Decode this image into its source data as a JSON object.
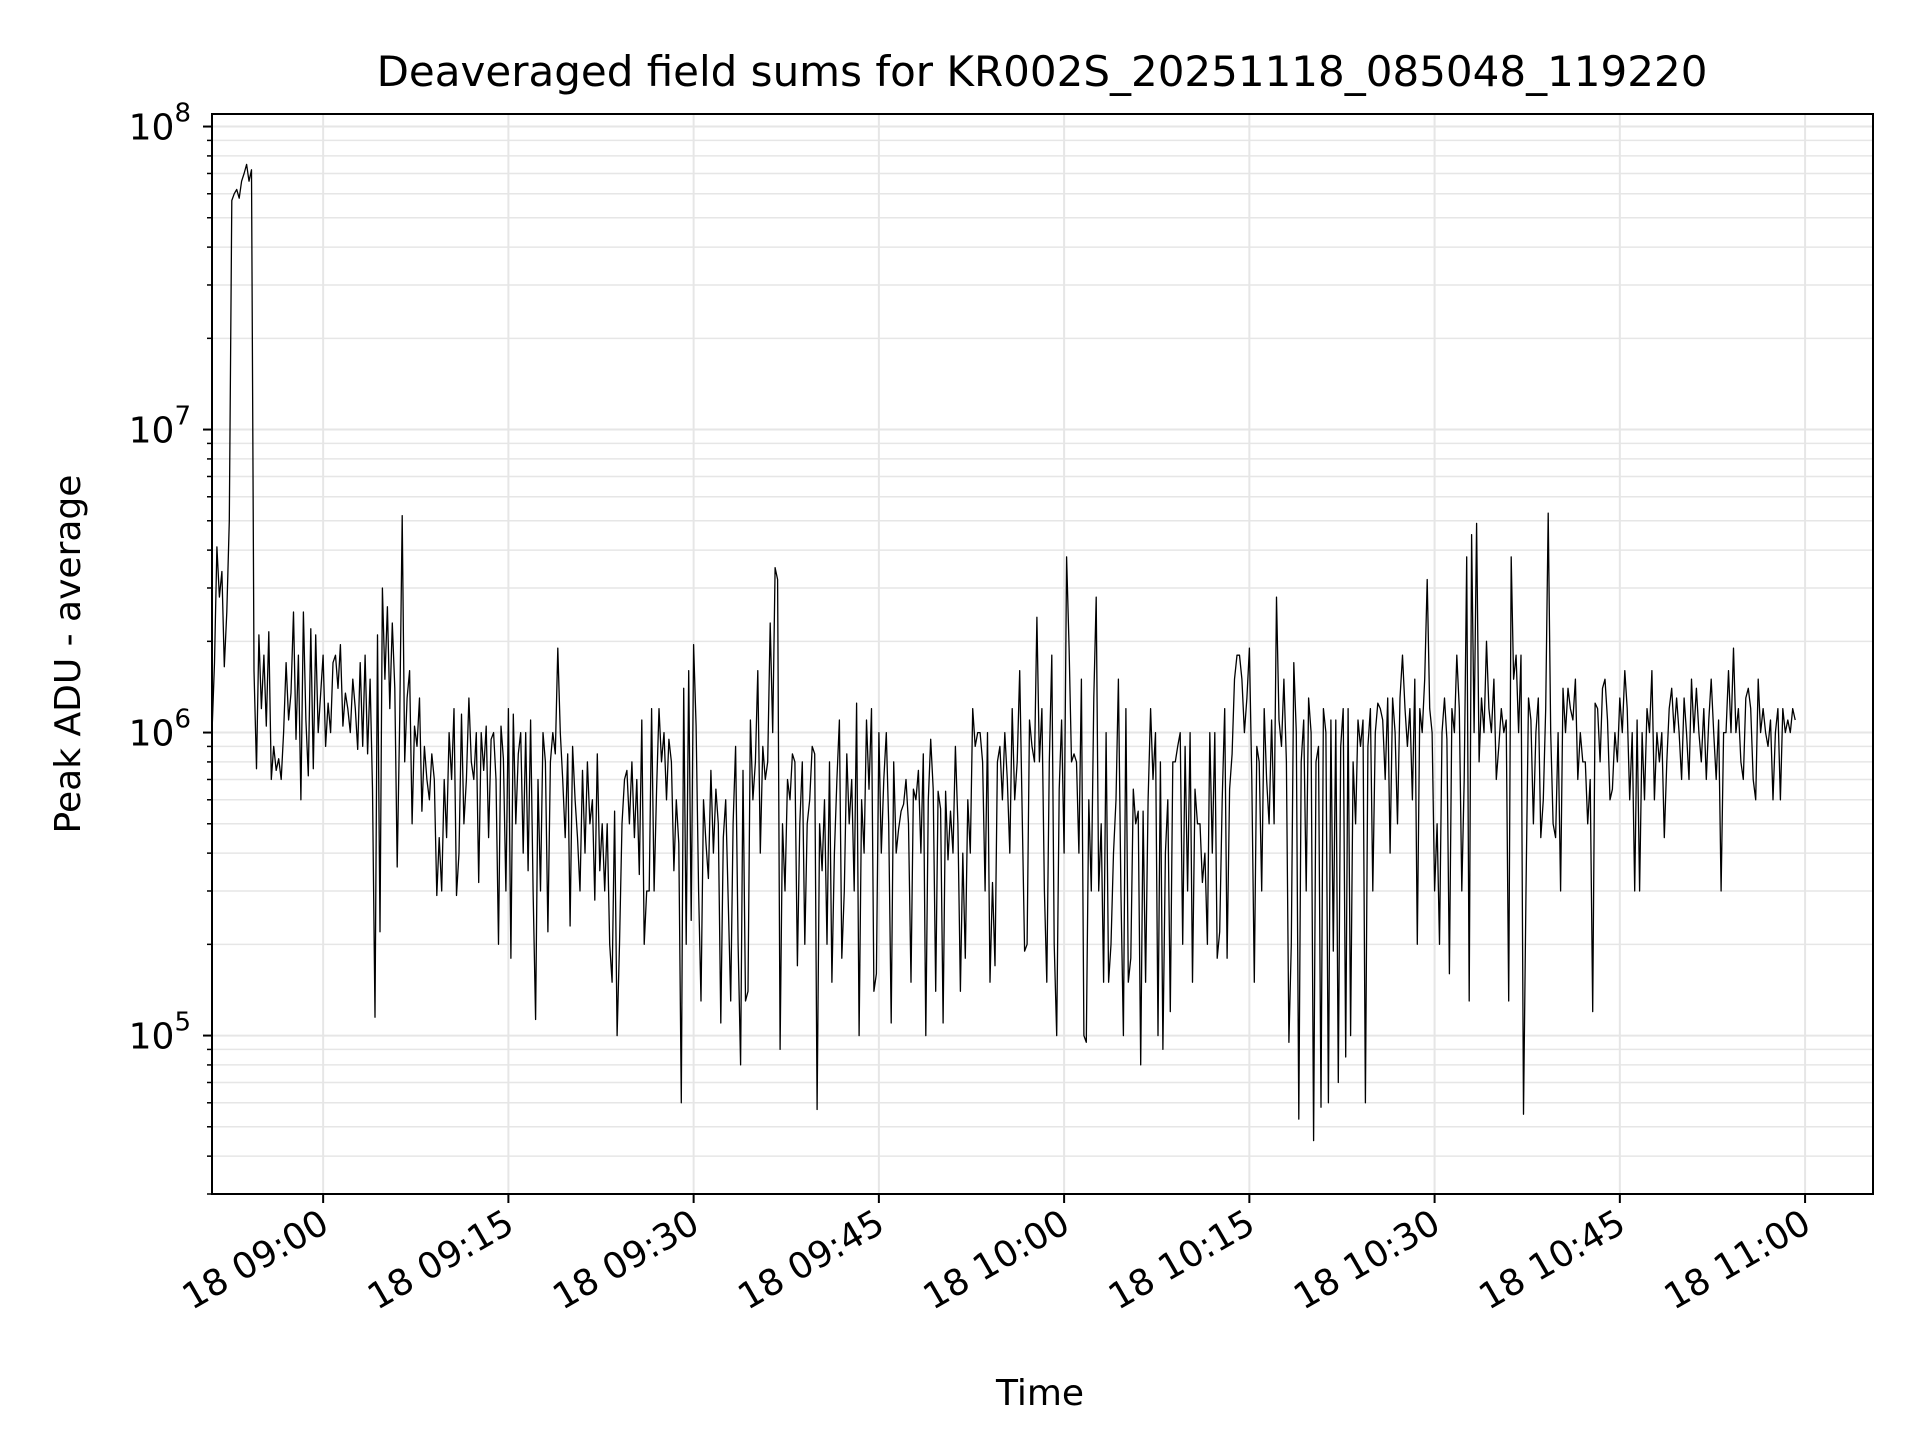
{
  "chart_data": {
    "type": "line",
    "title": "Deaveraged field sums for KR002S_20251118_085048_119220",
    "xlabel": "Time",
    "ylabel": "Peak ADU - average",
    "yscale": "log",
    "ylim": [
      30000,
      110000000
    ],
    "xlim_minutes_since_0850": [
      1.0,
      135.5
    ],
    "grid": true,
    "line_color": "#000000",
    "grid_color": "#e6e6e6",
    "x_ticks": [
      {
        "minute": 10,
        "label": "18 09:00"
      },
      {
        "minute": 25,
        "label": "18 09:15"
      },
      {
        "minute": 40,
        "label": "18 09:30"
      },
      {
        "minute": 55,
        "label": "18 09:45"
      },
      {
        "minute": 70,
        "label": "18 10:00"
      },
      {
        "minute": 85,
        "label": "18 10:15"
      },
      {
        "minute": 100,
        "label": "18 10:30"
      },
      {
        "minute": 115,
        "label": "18 10:45"
      },
      {
        "minute": 130,
        "label": "18 11:00"
      }
    ],
    "y_ticks": [
      {
        "value": 100000,
        "base": "10",
        "exp": "5"
      },
      {
        "value": 1000000,
        "base": "10",
        "exp": "6"
      },
      {
        "value": 10000000,
        "base": "10",
        "exp": "7"
      },
      {
        "value": 100000000,
        "base": "10",
        "exp": "8"
      }
    ],
    "series": [
      {
        "name": "Peak ADU - average",
        "x_start_minute": 1.0,
        "x_step_minute": 0.2,
        "values": [
          1000000,
          1700000,
          4100000,
          2800000,
          3400000,
          1650000,
          2500000,
          5000000,
          57000000,
          60000000,
          62000000,
          58000000,
          66000000,
          70000000,
          75000000,
          66000000,
          72000000,
          1600000,
          760000,
          2100000,
          1200000,
          1800000,
          1050000,
          2150000,
          700000,
          900000,
          750000,
          820000,
          700000,
          1000000,
          1700000,
          1100000,
          1350000,
          2500000,
          950000,
          1800000,
          600000,
          2500000,
          1100000,
          720000,
          2200000,
          760000,
          2100000,
          1000000,
          1350000,
          1800000,
          900000,
          1250000,
          1000000,
          1700000,
          1800000,
          1400000,
          1950000,
          1050000,
          1350000,
          1200000,
          1000000,
          1500000,
          1200000,
          880000,
          1700000,
          900000,
          1800000,
          850000,
          1500000,
          650000,
          115000,
          2100000,
          220000,
          3000000,
          1500000,
          2600000,
          1200000,
          2300000,
          1400000,
          360000,
          1100000,
          5200000,
          800000,
          1300000,
          1600000,
          500000,
          1050000,
          900000,
          1300000,
          550000,
          900000,
          700000,
          600000,
          850000,
          700000,
          290000,
          450000,
          300000,
          700000,
          450000,
          1000000,
          700000,
          1200000,
          290000,
          400000,
          1150000,
          500000,
          700000,
          1300000,
          800000,
          700000,
          1000000,
          320000,
          1000000,
          750000,
          1050000,
          450000,
          950000,
          1000000,
          700000,
          200000,
          1050000,
          820000,
          300000,
          1200000,
          180000,
          1150000,
          500000,
          850000,
          1000000,
          400000,
          1000000,
          350000,
          1100000,
          300000,
          113000,
          700000,
          300000,
          1000000,
          800000,
          220000,
          800000,
          1000000,
          850000,
          1900000,
          1000000,
          700000,
          450000,
          850000,
          230000,
          900000,
          600000,
          450000,
          300000,
          750000,
          400000,
          800000,
          500000,
          600000,
          280000,
          850000,
          350000,
          500000,
          300000,
          500000,
          200000,
          150000,
          550000,
          100000,
          200000,
          500000,
          700000,
          750000,
          500000,
          800000,
          450000,
          700000,
          340000,
          1100000,
          200000,
          300000,
          300000,
          1200000,
          300000,
          650000,
          1200000,
          800000,
          1000000,
          600000,
          950000,
          800000,
          350000,
          600000,
          430000,
          60000,
          1400000,
          200000,
          1600000,
          240000,
          1950000,
          1050000,
          300000,
          130000,
          600000,
          430000,
          330000,
          750000,
          400000,
          650000,
          500000,
          110000,
          450000,
          600000,
          280000,
          130000,
          500000,
          900000,
          200000,
          80000,
          750000,
          130000,
          140000,
          1100000,
          600000,
          800000,
          1600000,
          400000,
          900000,
          700000,
          800000,
          2300000,
          1000000,
          3500000,
          3200000,
          90000,
          500000,
          300000,
          700000,
          600000,
          850000,
          800000,
          170000,
          500000,
          800000,
          200000,
          500000,
          600000,
          900000,
          850000,
          57000,
          500000,
          350000,
          600000,
          200000,
          800000,
          150000,
          400000,
          700000,
          1100000,
          180000,
          300000,
          850000,
          500000,
          700000,
          300000,
          1250000,
          100000,
          600000,
          400000,
          1100000,
          650000,
          1200000,
          140000,
          160000,
          1000000,
          400000,
          700000,
          1000000,
          500000,
          110000,
          800000,
          400000,
          480000,
          550000,
          580000,
          700000,
          500000,
          150000,
          650000,
          600000,
          750000,
          400000,
          850000,
          100000,
          600000,
          950000,
          650000,
          140000,
          640000,
          560000,
          110000,
          640000,
          380000,
          550000,
          400000,
          900000,
          500000,
          140000,
          400000,
          180000,
          600000,
          400000,
          1200000,
          900000,
          1000000,
          1000000,
          800000,
          300000,
          1000000,
          150000,
          320000,
          170000,
          800000,
          900000,
          600000,
          1000000,
          700000,
          400000,
          1200000,
          600000,
          800000,
          1600000,
          560000,
          190000,
          200000,
          1100000,
          900000,
          800000,
          2400000,
          800000,
          1200000,
          300000,
          150000,
          800000,
          1800000,
          200000,
          100000,
          650000,
          1100000,
          400000,
          3800000,
          1900000,
          800000,
          850000,
          800000,
          400000,
          1500000,
          100000,
          95000,
          600000,
          300000,
          1300000,
          2800000,
          300000,
          500000,
          150000,
          1000000,
          150000,
          200000,
          400000,
          600000,
          1500000,
          300000,
          100000,
          1200000,
          150000,
          180000,
          650000,
          500000,
          550000,
          80000,
          550000,
          150000,
          600000,
          1200000,
          700000,
          1000000,
          100000,
          800000,
          90000,
          400000,
          600000,
          120000,
          800000,
          800000,
          900000,
          1000000,
          200000,
          900000,
          300000,
          1000000,
          150000,
          650000,
          500000,
          500000,
          320000,
          400000,
          200000,
          1000000,
          400000,
          1000000,
          180000,
          220000,
          600000,
          1200000,
          180000,
          650000,
          850000,
          1500000,
          1800000,
          1800000,
          1500000,
          1000000,
          1300000,
          1900000,
          700000,
          150000,
          900000,
          800000,
          300000,
          1200000,
          700000,
          500000,
          1100000,
          500000,
          2800000,
          1100000,
          900000,
          1500000,
          800000,
          95000,
          200000,
          1700000,
          1000000,
          53000,
          800000,
          1100000,
          300000,
          1300000,
          1000000,
          45000,
          800000,
          900000,
          58000,
          1200000,
          1000000,
          60000,
          1100000,
          190000,
          1100000,
          70000,
          900000,
          1200000,
          85000,
          1200000,
          100000,
          800000,
          500000,
          1100000,
          900000,
          1100000,
          60000,
          900000,
          1200000,
          300000,
          1000000,
          1250000,
          1200000,
          1100000,
          700000,
          1300000,
          400000,
          1300000,
          1000000,
          500000,
          1300000,
          1800000,
          1200000,
          900000,
          1200000,
          600000,
          1500000,
          200000,
          1200000,
          1000000,
          1500000,
          3200000,
          1200000,
          1000000,
          300000,
          500000,
          200000,
          1000000,
          1300000,
          950000,
          160000,
          1200000,
          1000000,
          1800000,
          1200000,
          300000,
          700000,
          3800000,
          130000,
          4500000,
          1000000,
          4900000,
          800000,
          1300000,
          1000000,
          2000000,
          1200000,
          1000000,
          1500000,
          700000,
          900000,
          1200000,
          1000000,
          1100000,
          130000,
          3800000,
          1500000,
          1800000,
          1000000,
          1800000,
          55000,
          300000,
          1300000,
          1100000,
          500000,
          1000000,
          1300000,
          450000,
          600000,
          1200000,
          5300000,
          1000000,
          500000,
          450000,
          1000000,
          300000,
          1400000,
          1000000,
          1400000,
          1200000,
          1100000,
          1500000,
          700000,
          1000000,
          800000,
          800000,
          500000,
          700000,
          120000,
          1250000,
          1200000,
          800000,
          1400000,
          1500000,
          1100000,
          600000,
          650000,
          1000000,
          800000,
          1300000,
          1000000,
          1600000,
          1200000,
          600000,
          1000000,
          300000,
          1100000,
          300000,
          1000000,
          600000,
          1200000,
          1000000,
          1600000,
          600000,
          1000000,
          800000,
          1000000,
          450000,
          800000,
          1200000,
          1400000,
          1000000,
          1300000,
          1000000,
          700000,
          1300000,
          1000000,
          700000,
          1500000,
          1000000,
          1400000,
          1000000,
          800000,
          1200000,
          700000,
          1100000,
          1500000,
          1000000,
          700000,
          1100000,
          300000,
          1000000,
          1000000,
          1600000,
          1000000,
          1900000,
          1000000,
          1200000,
          800000,
          700000,
          1300000,
          1400000,
          1200000,
          700000,
          600000,
          1500000,
          1000000,
          1200000,
          1000000,
          900000,
          1100000,
          600000,
          1000000,
          1200000,
          600000,
          1200000,
          1000000,
          1100000,
          1000000,
          1200000,
          1100000
        ]
      }
    ]
  }
}
